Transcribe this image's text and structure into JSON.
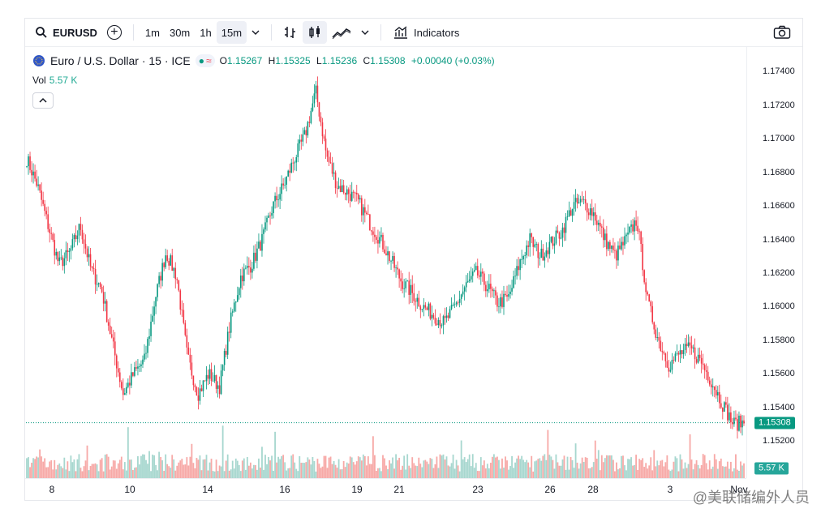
{
  "toolbar": {
    "symbol": "EURUSD",
    "intervals": [
      "1m",
      "30m",
      "1h",
      "15m"
    ],
    "active_interval": "15m",
    "indicators_label": "Indicators"
  },
  "legend": {
    "title": "Euro / U.S. Dollar · 15 · ICE",
    "open_label": "O",
    "open": "1.15267",
    "high_label": "H",
    "high": "1.15325",
    "low_label": "L",
    "low": "1.15236",
    "close_label": "C",
    "close": "1.15308",
    "change": "+0.00040 (+0.03%)",
    "vol_label": "Vol",
    "vol_value": "5.57 K"
  },
  "price_axis": {
    "labels": [
      "1.17400",
      "1.17200",
      "1.17000",
      "1.16800",
      "1.16600",
      "1.16400",
      "1.16200",
      "1.16000",
      "1.15800",
      "1.15600",
      "1.15400",
      "1.15200"
    ],
    "last_price": "1.15308",
    "last_volume": "5.57 K"
  },
  "time_axis": {
    "labels": [
      "8",
      "10",
      "14",
      "16",
      "19",
      "21",
      "23",
      "26",
      "28",
      "3",
      "Nov"
    ]
  },
  "watermark": "@美联储编外人员",
  "colors": {
    "up": "#089981",
    "down": "#f23645",
    "vol_up": "#a7d7cf",
    "vol_down": "#f7a9a7"
  },
  "chart_data": {
    "type": "candlestick",
    "title": "Euro / U.S. Dollar · 15 · ICE",
    "ylim": [
      1.1515,
      1.175
    ],
    "x_ticks": [
      "8",
      "10",
      "14",
      "16",
      "19",
      "21",
      "23",
      "26",
      "28",
      "3",
      "Nov"
    ],
    "close_series": [
      1.1688,
      1.1672,
      1.1648,
      1.1625,
      1.1632,
      1.1648,
      1.1622,
      1.161,
      1.1578,
      1.1548,
      1.156,
      1.1568,
      1.1605,
      1.1632,
      1.1618,
      1.157,
      1.1548,
      1.156,
      1.1552,
      1.159,
      1.1618,
      1.1625,
      1.164,
      1.166,
      1.1672,
      1.1688,
      1.1702,
      1.1728,
      1.169,
      1.1672,
      1.1668,
      1.1662,
      1.165,
      1.164,
      1.1628,
      1.1615,
      1.1608,
      1.16,
      1.1595,
      1.159,
      1.16,
      1.1612,
      1.162,
      1.1612,
      1.1602,
      1.1605,
      1.1625,
      1.164,
      1.163,
      1.1638,
      1.1645,
      1.166,
      1.1662,
      1.1655,
      1.164,
      1.163,
      1.164,
      1.1652,
      1.1603,
      1.158,
      1.1565,
      1.1572,
      1.1575,
      1.1567,
      1.1555,
      1.1542,
      1.153,
      1.1531
    ]
  }
}
